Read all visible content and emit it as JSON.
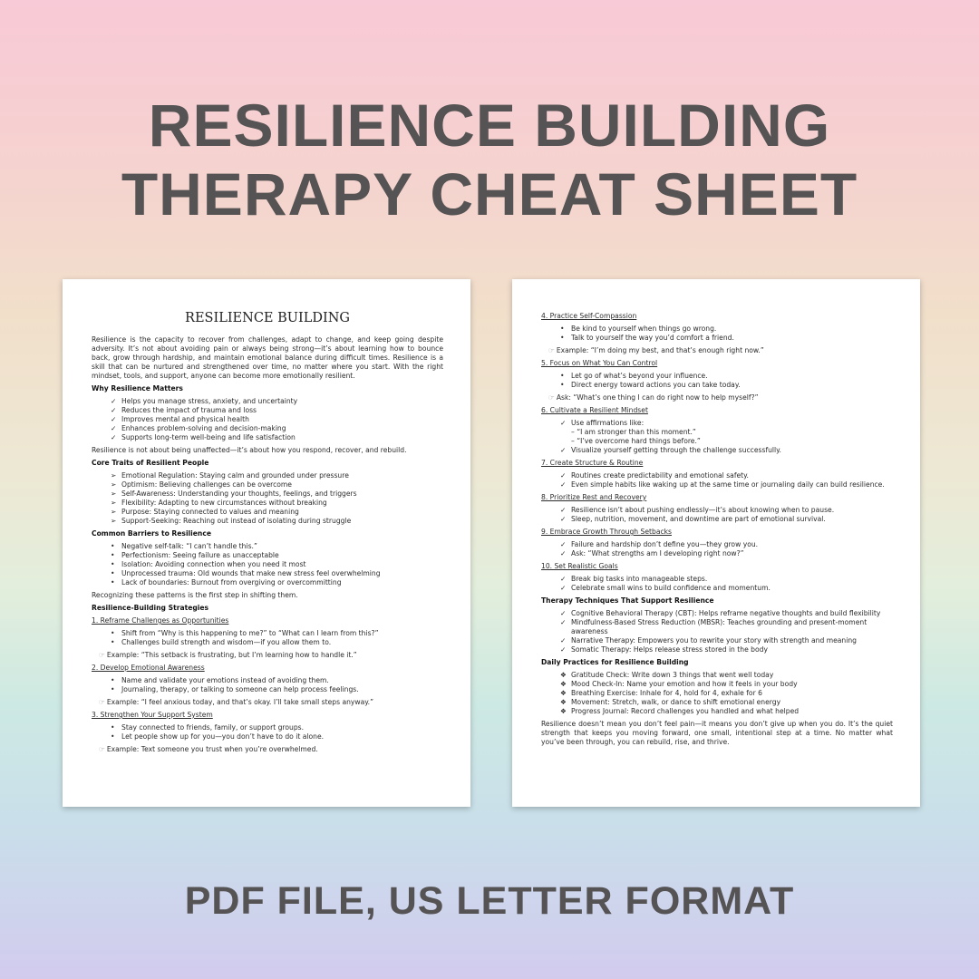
{
  "headline": [
    "RESILIENCE BUILDING",
    "THERAPY CHEAT SHEET"
  ],
  "footer": "PDF FILE, US LETTER FORMAT",
  "markers": {
    "check": "✓",
    "arrow": "➢",
    "bullet": "•",
    "diamond": "❖",
    "example": "☞"
  },
  "pages": [
    {
      "title": "RESILIENCE BUILDING",
      "blocks": [
        {
          "type": "para",
          "text": "Resilience is the capacity to recover from challenges, adapt to change, and keep going despite adversity. It’s not about avoiding pain or always being strong—it’s about learning how to bounce back, grow through hardship, and maintain emotional balance during difficult times. Resilience is a skill that can be nurtured and strengthened over time, no matter where you start. With the right mindset, tools, and support, anyone can become more emotionally resilient."
        },
        {
          "type": "heading",
          "text": "Why Resilience Matters"
        },
        {
          "type": "list",
          "marker": "check",
          "items": [
            "Helps you manage stress, anxiety, and uncertainty",
            "Reduces the impact of trauma and loss",
            "Improves mental and physical health",
            "Enhances problem-solving and decision-making",
            "Supports long-term well-being and life satisfaction"
          ]
        },
        {
          "type": "para",
          "text": "Resilience is not about being unaffected—it’s about how you respond, recover, and rebuild."
        },
        {
          "type": "heading",
          "text": "Core Traits of Resilient People"
        },
        {
          "type": "list",
          "marker": "arrow",
          "items": [
            "Emotional Regulation: Staying calm and grounded under pressure",
            "Optimism: Believing challenges can be overcome",
            "Self-Awareness: Understanding your thoughts, feelings, and triggers",
            "Flexibility: Adapting to new circumstances without breaking",
            "Purpose: Staying connected to values and meaning",
            "Support-Seeking: Reaching out instead of isolating during struggle"
          ]
        },
        {
          "type": "heading",
          "text": "Common Barriers to Resilience"
        },
        {
          "type": "list",
          "marker": "bullet",
          "items": [
            "Negative self-talk: “I can’t handle this.”",
            "Perfectionism: Seeing failure as unacceptable",
            "Isolation: Avoiding connection when you need it most",
            "Unprocessed trauma: Old wounds that make new stress feel overwhelming",
            "Lack of boundaries: Burnout from overgiving or overcommitting"
          ]
        },
        {
          "type": "para",
          "text": "Recognizing these patterns is the first step in shifting them."
        },
        {
          "type": "heading",
          "text": "Resilience-Building Strategies"
        },
        {
          "type": "sub",
          "text": "1. Reframe Challenges as Opportunities"
        },
        {
          "type": "list",
          "marker": "bullet",
          "items": [
            "Shift from “Why is this happening to me?” to “What can I learn from this?”",
            "Challenges build strength and wisdom—if you allow them to."
          ]
        },
        {
          "type": "example",
          "text": "Example: “This setback is frustrating, but I’m learning how to handle it.”"
        },
        {
          "type": "sub",
          "text": "2. Develop Emotional Awareness"
        },
        {
          "type": "list",
          "marker": "bullet",
          "items": [
            "Name and validate your emotions instead of avoiding them.",
            "Journaling, therapy, or talking to someone can help process feelings."
          ]
        },
        {
          "type": "example",
          "text": "Example: “I feel anxious today, and that’s okay. I’ll take small steps anyway.”"
        },
        {
          "type": "sub",
          "text": "3. Strengthen Your Support System"
        },
        {
          "type": "list",
          "marker": "bullet",
          "items": [
            "Stay connected to friends, family, or support groups.",
            "Let people show up for you—you don’t have to do it alone."
          ]
        },
        {
          "type": "example",
          "text": "Example: Text someone you trust when you’re overwhelmed."
        }
      ]
    },
    {
      "blocks": [
        {
          "type": "sub",
          "text": "4. Practice Self-Compassion"
        },
        {
          "type": "list",
          "marker": "bullet",
          "items": [
            "Be kind to yourself when things go wrong.",
            "Talk to yourself the way you’d comfort a friend."
          ]
        },
        {
          "type": "example",
          "text": "Example: “I’m doing my best, and that’s enough right now.”"
        },
        {
          "type": "sub",
          "text": "5. Focus on What You Can Control"
        },
        {
          "type": "list",
          "marker": "bullet",
          "items": [
            "Let go of what’s beyond your influence.",
            "Direct energy toward actions you can take today."
          ]
        },
        {
          "type": "example",
          "text": "Ask: “What’s one thing I can do right now to help myself?”"
        },
        {
          "type": "sub",
          "text": "6. Cultivate a Resilient Mindset"
        },
        {
          "type": "list",
          "marker": "check",
          "items": [
            "Use affirmations like:",
            "– “I am stronger than this moment.”",
            "– “I’ve overcome hard things before.”",
            "Visualize yourself getting through the challenge successfully."
          ],
          "sublines": [
            1,
            2
          ]
        },
        {
          "type": "sub",
          "text": "7. Create Structure & Routine"
        },
        {
          "type": "list",
          "marker": "check",
          "items": [
            "Routines create predictability and emotional safety.",
            "Even simple habits like waking up at the same time or journaling daily can build resilience."
          ]
        },
        {
          "type": "sub",
          "text": "8. Prioritize Rest and Recovery"
        },
        {
          "type": "list",
          "marker": "check",
          "items": [
            "Resilience isn’t about pushing endlessly—it’s about knowing when to pause.",
            "Sleep, nutrition, movement, and downtime are part of emotional survival."
          ]
        },
        {
          "type": "sub",
          "text": "9. Embrace Growth Through Setbacks"
        },
        {
          "type": "list",
          "marker": "check",
          "items": [
            "Failure and hardship don’t define you—they grow you.",
            "Ask: “What strengths am I developing right now?”"
          ]
        },
        {
          "type": "sub",
          "text": "10. Set Realistic Goals"
        },
        {
          "type": "list",
          "marker": "check",
          "items": [
            "Break big tasks into manageable steps.",
            "Celebrate small wins to build confidence and momentum."
          ]
        },
        {
          "type": "heading",
          "text": "Therapy Techniques That Support Resilience"
        },
        {
          "type": "list",
          "marker": "check",
          "items": [
            "Cognitive Behavioral Therapy (CBT): Helps reframe negative thoughts and build flexibility",
            "Mindfulness-Based Stress Reduction (MBSR): Teaches grounding and present-moment awareness",
            "Narrative Therapy: Empowers you to rewrite your story with strength and meaning",
            "Somatic Therapy: Helps release stress stored in the body"
          ]
        },
        {
          "type": "heading",
          "text": "Daily Practices for Resilience Building"
        },
        {
          "type": "list",
          "marker": "diamond",
          "items": [
            "Gratitude Check: Write down 3 things that went well today",
            "Mood Check-In: Name your emotion and how it feels in your body",
            "Breathing Exercise: Inhale for 4, hold for 4, exhale for 6",
            "Movement: Stretch, walk, or dance to shift emotional energy",
            "Progress Journal: Record challenges you handled and what helped"
          ]
        },
        {
          "type": "para",
          "text": "Resilience doesn’t mean you don’t feel pain—it means you don’t give up when you do. It’s the quiet strength that keeps you moving forward, one small, intentional step at a time. No matter what you’ve been through, you can rebuild, rise, and thrive."
        }
      ]
    }
  ]
}
